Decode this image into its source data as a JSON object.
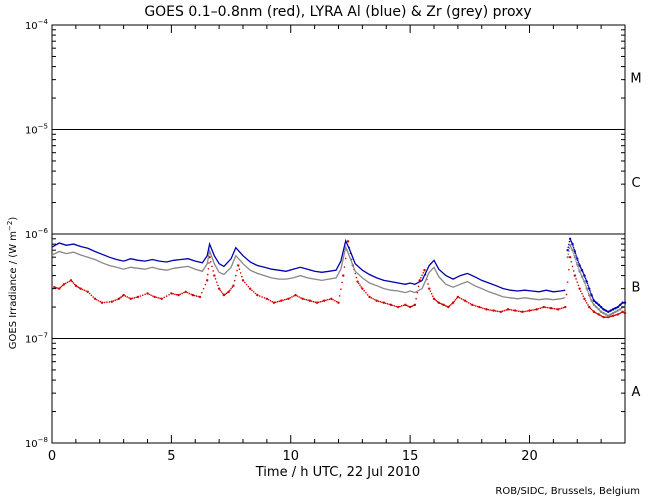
{
  "chart_data": {
    "type": "line",
    "title": "GOES 0.1–0.8nm (red), LYRA Al (blue) & Zr (grey) proxy",
    "xlabel": "Time / h UTC, 22 Jul 2010",
    "ylabel": "GOES Irradiance / (W m⁻²)",
    "ylabel_parts": {
      "prefix": "GOES Irradiance / (W m",
      "sup": "−2",
      "suffix": ")"
    },
    "xlim": [
      0,
      24
    ],
    "ylim": [
      1e-08,
      0.0001
    ],
    "yscale": "log",
    "x_ticks": [
      0,
      5,
      10,
      15,
      20
    ],
    "y_ticks": [
      {
        "value": 1e-08,
        "base": "10",
        "exp": "−8"
      },
      {
        "value": 1e-07,
        "base": "10",
        "exp": "−7"
      },
      {
        "value": 1e-06,
        "base": "10",
        "exp": "−6"
      },
      {
        "value": 1e-05,
        "base": "10",
        "exp": "−5"
      },
      {
        "value": 0.0001,
        "base": "10",
        "exp": "−4"
      }
    ],
    "flare_class_lines": [
      1e-07,
      1e-06,
      1e-05
    ],
    "flare_classes": [
      {
        "label": "A",
        "value": 3.16e-08
      },
      {
        "label": "B",
        "value": 3.16e-07
      },
      {
        "label": "C",
        "value": 3.16e-06
      },
      {
        "label": "M",
        "value": 3.16e-05
      }
    ],
    "series": [
      {
        "color": "#d00000",
        "style": "dots",
        "x": [
          0.1,
          0.3,
          0.5,
          0.8,
          1.0,
          1.2,
          1.5,
          1.8,
          2.1,
          2.5,
          2.8,
          3.0,
          3.3,
          3.6,
          4.0,
          4.3,
          4.6,
          5.0,
          5.3,
          5.6,
          5.9,
          6.2,
          6.5,
          6.6,
          6.8,
          7.0,
          7.2,
          7.4,
          7.6,
          7.8,
          8.0,
          8.3,
          8.6,
          9.0,
          9.3,
          9.6,
          9.9,
          10.2,
          10.5,
          10.8,
          11.1,
          11.4,
          11.7,
          12.0,
          12.2,
          12.4,
          12.6,
          12.8,
          13.0,
          13.3,
          13.6,
          13.9,
          14.2,
          14.5,
          14.8,
          15.0,
          15.2,
          15.4,
          15.6,
          15.8,
          16.0,
          16.2,
          16.4,
          16.6,
          16.8,
          17.0,
          17.3,
          17.6,
          17.9,
          18.2,
          18.5,
          18.8,
          19.1,
          19.4,
          19.7,
          20.0,
          20.3,
          20.6,
          20.9,
          21.2,
          21.5,
          21.7,
          21.9,
          22.1,
          22.3,
          22.5,
          22.7,
          22.9,
          23.1,
          23.3,
          23.5,
          23.7,
          23.9,
          24.0
        ],
        "y": [
          3.1e-07,
          3e-07,
          3.3e-07,
          3.6e-07,
          3.2e-07,
          3e-07,
          2.8e-07,
          2.4e-07,
          2.2e-07,
          2.25e-07,
          2.4e-07,
          2.6e-07,
          2.4e-07,
          2.5e-07,
          2.7e-07,
          2.5e-07,
          2.4e-07,
          2.7e-07,
          2.6e-07,
          2.8e-07,
          2.6e-07,
          2.5e-07,
          3.6e-07,
          6e-07,
          4e-07,
          3e-07,
          2.6e-07,
          2.8e-07,
          3.2e-07,
          5e-07,
          3.6e-07,
          3e-07,
          2.6e-07,
          2.4e-07,
          2.2e-07,
          2.3e-07,
          2.4e-07,
          2.6e-07,
          2.4e-07,
          2.3e-07,
          2.2e-07,
          2.3e-07,
          2.4e-07,
          2.2e-07,
          4e-07,
          8.5e-07,
          5e-07,
          3.5e-07,
          3e-07,
          2.5e-07,
          2.3e-07,
          2.2e-07,
          2.1e-07,
          2e-07,
          2.1e-07,
          2e-07,
          2.1e-07,
          3.6e-07,
          4.5e-07,
          3e-07,
          2.4e-07,
          2.2e-07,
          2.1e-07,
          2e-07,
          2.2e-07,
          2.5e-07,
          2.3e-07,
          2.1e-07,
          2e-07,
          1.9e-07,
          1.85e-07,
          1.8e-07,
          1.9e-07,
          1.85e-07,
          1.8e-07,
          1.85e-07,
          1.9e-07,
          2e-07,
          1.95e-07,
          1.9e-07,
          2e-07,
          6e-07,
          4e-07,
          3e-07,
          2.4e-07,
          2e-07,
          1.8e-07,
          1.7e-07,
          1.6e-07,
          1.6e-07,
          1.65e-07,
          1.7e-07,
          1.8e-07,
          1.75e-07
        ]
      },
      {
        "color": "#0000b0",
        "style": "line",
        "x": [
          0.0,
          0.3,
          0.6,
          0.9,
          1.2,
          1.5,
          1.8,
          2.1,
          2.4,
          2.7,
          3.0,
          3.3,
          3.6,
          3.9,
          4.2,
          4.5,
          4.8,
          5.1,
          5.4,
          5.7,
          6.0,
          6.3,
          6.5,
          6.6,
          6.8,
          7.0,
          7.2,
          7.5,
          7.7,
          8.0,
          8.3,
          8.6,
          8.9,
          9.2,
          9.5,
          9.8,
          10.1,
          10.4,
          10.7,
          11.0,
          11.3,
          11.6,
          11.9,
          12.1,
          12.3,
          12.5,
          12.7,
          13.0,
          13.3,
          13.6,
          13.9,
          14.2,
          14.5,
          14.8,
          15.0,
          15.2,
          15.5,
          15.8,
          16.0,
          16.2,
          16.5,
          16.8,
          17.1,
          17.4,
          17.7,
          18.0,
          18.3,
          18.6,
          18.9,
          19.2,
          19.5,
          19.8,
          20.1,
          20.4,
          20.7,
          21.0,
          21.3,
          21.5
        ],
        "y": [
          7.5e-07,
          8.2e-07,
          7.8e-07,
          8e-07,
          7.6e-07,
          7.3e-07,
          6.8e-07,
          6.4e-07,
          6e-07,
          5.7e-07,
          5.5e-07,
          5.8e-07,
          5.6e-07,
          5.5e-07,
          5.7e-07,
          5.5e-07,
          5.4e-07,
          5.6e-07,
          5.7e-07,
          5.8e-07,
          5.5e-07,
          5.3e-07,
          6.2e-07,
          8e-07,
          6.2e-07,
          5.2e-07,
          4.9e-07,
          5.8e-07,
          7.4e-07,
          6.2e-07,
          5.4e-07,
          5e-07,
          4.8e-07,
          4.6e-07,
          4.5e-07,
          4.4e-07,
          4.6e-07,
          4.8e-07,
          4.6e-07,
          4.4e-07,
          4.3e-07,
          4.4e-07,
          4.5e-07,
          5.5e-07,
          8.6e-07,
          6.8e-07,
          5.2e-07,
          4.5e-07,
          4.1e-07,
          3.8e-07,
          3.6e-07,
          3.5e-07,
          3.4e-07,
          3.3e-07,
          3.4e-07,
          3.3e-07,
          3.6e-07,
          5e-07,
          5.6e-07,
          4.6e-07,
          4e-07,
          3.7e-07,
          4e-07,
          4.2e-07,
          3.9e-07,
          3.6e-07,
          3.4e-07,
          3.2e-07,
          3e-07,
          2.9e-07,
          2.85e-07,
          2.9e-07,
          2.85e-07,
          2.8e-07,
          2.9e-07,
          2.8e-07,
          2.85e-07,
          2.9e-07
        ]
      },
      {
        "color": "#888888",
        "style": "line",
        "x": [
          0.0,
          0.3,
          0.6,
          0.9,
          1.2,
          1.5,
          1.8,
          2.1,
          2.4,
          2.7,
          3.0,
          3.3,
          3.6,
          3.9,
          4.2,
          4.5,
          4.8,
          5.1,
          5.4,
          5.7,
          6.0,
          6.3,
          6.5,
          6.6,
          6.8,
          7.0,
          7.2,
          7.5,
          7.7,
          8.0,
          8.3,
          8.6,
          8.9,
          9.2,
          9.5,
          9.8,
          10.1,
          10.4,
          10.7,
          11.0,
          11.3,
          11.6,
          11.9,
          12.1,
          12.3,
          12.5,
          12.7,
          13.0,
          13.3,
          13.6,
          13.9,
          14.2,
          14.5,
          14.8,
          15.0,
          15.2,
          15.5,
          15.8,
          16.0,
          16.2,
          16.5,
          16.8,
          17.1,
          17.4,
          17.7,
          18.0,
          18.3,
          18.6,
          18.9,
          19.2,
          19.5,
          19.8,
          20.1,
          20.4,
          20.7,
          21.0,
          21.3,
          21.5
        ],
        "y": [
          6.3e-07,
          6.8e-07,
          6.5e-07,
          6.7e-07,
          6.3e-07,
          6e-07,
          5.7e-07,
          5.3e-07,
          5e-07,
          4.8e-07,
          4.6e-07,
          4.8e-07,
          4.7e-07,
          4.6e-07,
          4.8e-07,
          4.6e-07,
          4.5e-07,
          4.7e-07,
          4.8e-07,
          4.9e-07,
          4.6e-07,
          4.4e-07,
          5.2e-07,
          6.9e-07,
          5.2e-07,
          4.3e-07,
          4.1e-07,
          4.8e-07,
          6.2e-07,
          5.2e-07,
          4.5e-07,
          4.2e-07,
          4e-07,
          3.8e-07,
          3.7e-07,
          3.7e-07,
          3.8e-07,
          4e-07,
          3.8e-07,
          3.7e-07,
          3.6e-07,
          3.7e-07,
          3.8e-07,
          4.6e-07,
          7.5e-07,
          5.8e-07,
          4.4e-07,
          3.8e-07,
          3.4e-07,
          3.2e-07,
          3e-07,
          2.9e-07,
          2.85e-07,
          2.75e-07,
          2.85e-07,
          2.75e-07,
          3e-07,
          4.3e-07,
          4.8e-07,
          3.9e-07,
          3.3e-07,
          3.1e-07,
          3.3e-07,
          3.5e-07,
          3.2e-07,
          3e-07,
          2.8e-07,
          2.65e-07,
          2.5e-07,
          2.45e-07,
          2.4e-07,
          2.45e-07,
          2.4e-07,
          2.35e-07,
          2.4e-07,
          2.35e-07,
          2.4e-07,
          2.45e-07
        ]
      },
      {
        "color": "#0000b0",
        "style": "dots",
        "x": [
          21.6,
          21.7,
          21.8,
          21.9,
          22.0,
          22.1,
          22.2,
          22.3,
          22.4,
          22.5,
          22.6,
          22.7,
          22.8,
          22.9,
          23.0,
          23.1,
          23.2,
          23.3,
          23.4,
          23.5,
          23.6,
          23.7,
          23.8,
          23.9,
          24.0
        ],
        "y": [
          7e-07,
          9e-07,
          8e-07,
          6.8e-07,
          5.8e-07,
          5e-07,
          4.5e-07,
          4e-07,
          3.5e-07,
          3e-07,
          2.6e-07,
          2.3e-07,
          2.2e-07,
          2.1e-07,
          2e-07,
          1.9e-07,
          1.85e-07,
          1.8e-07,
          1.85e-07,
          1.9e-07,
          1.95e-07,
          2e-07,
          2.1e-07,
          2.2e-07,
          2.2e-07
        ]
      },
      {
        "color": "#888888",
        "style": "dots",
        "x": [
          21.6,
          21.7,
          21.8,
          21.9,
          22.0,
          22.1,
          22.2,
          22.3,
          22.4,
          22.5,
          22.6,
          22.7,
          22.8,
          22.9,
          23.0,
          23.1,
          23.2,
          23.3,
          23.4,
          23.5,
          23.6,
          23.7,
          23.8,
          23.9,
          24.0
        ],
        "y": [
          6e-07,
          7.8e-07,
          7e-07,
          6e-07,
          5.1e-07,
          4.4e-07,
          3.9e-07,
          3.5e-07,
          3e-07,
          2.6e-07,
          2.3e-07,
          2.1e-07,
          2e-07,
          1.9e-07,
          1.8e-07,
          1.75e-07,
          1.7e-07,
          1.65e-07,
          1.7e-07,
          1.75e-07,
          1.8e-07,
          1.85e-07,
          1.9e-07,
          2e-07,
          2e-07
        ]
      }
    ]
  },
  "footer": {
    "credit": "ROB/SIDC, Brussels, Belgium"
  }
}
